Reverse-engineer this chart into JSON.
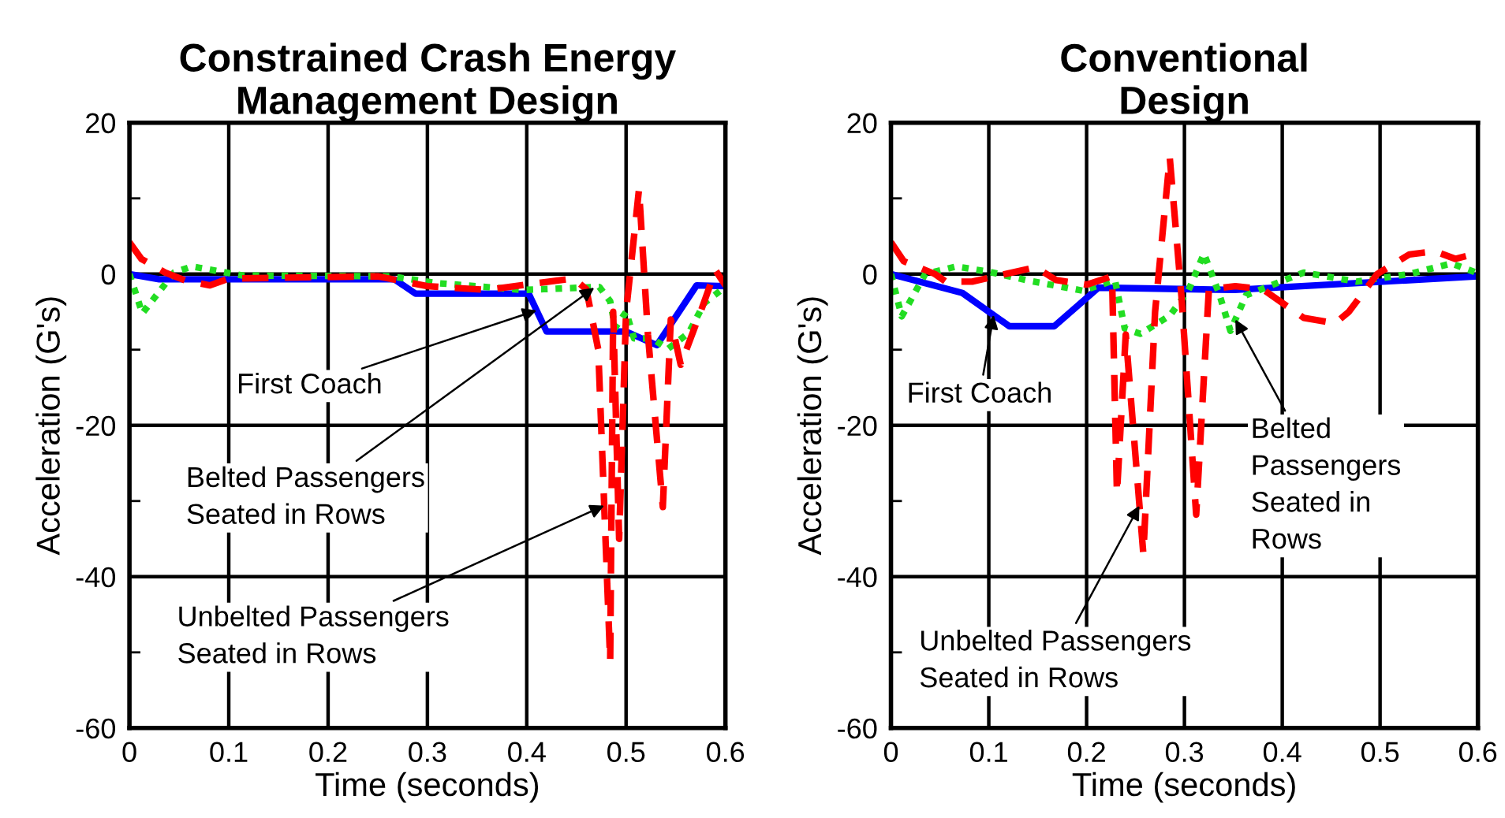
{
  "chart_data": [
    {
      "type": "line",
      "title": "Constrained Crash Energy\nManagement Design",
      "xlabel": "Time (seconds)",
      "ylabel": "Acceleration (G's)",
      "xlim": [
        0,
        0.6
      ],
      "ylim": [
        -60,
        20
      ],
      "xticks": [
        0,
        0.1,
        0.2,
        0.3,
        0.4,
        0.5,
        0.6
      ],
      "yticks": [
        20,
        {
          "value": 10,
          "label": null
        },
        0,
        {
          "value": -10,
          "label": null
        },
        -20,
        {
          "value": -30,
          "label": null
        },
        -40,
        {
          "value": -50,
          "label": null
        },
        -60
      ],
      "grid": true,
      "legend": false,
      "series": [
        {
          "color": "#0000ff",
          "line_style": "solid",
          "x": [
            0,
            0.03,
            0.267,
            0.288,
            0.402,
            0.42,
            0.5,
            0.531,
            0.571,
            0.6
          ],
          "values": [
            0,
            -0.7,
            -0.7,
            -2.6,
            -2.6,
            -7.6,
            -7.6,
            -9.4,
            -1.5,
            -1.6
          ]
        },
        {
          "color": "#22dd22",
          "line_style": "dotted",
          "x": [
            0,
            0.013,
            0.045,
            0.063,
            0.114,
            0.263,
            0.31,
            0.396,
            0.417,
            0.473,
            0.484,
            0.489,
            0.5,
            0.508,
            0.526,
            0.542,
            0.563,
            0.579,
            0.6
          ],
          "values": [
            0,
            -5.2,
            0.2,
            1.0,
            -0.2,
            -0.3,
            -1.2,
            -2.1,
            -2.0,
            -1.7,
            -3.6,
            -7.1,
            -5.0,
            -8.5,
            -8.5,
            -9.9,
            -7.8,
            -3.8,
            -1.7
          ]
        },
        {
          "color": "#ff0000",
          "line_style": "dashed",
          "x": [
            0,
            0.012,
            0.036,
            0.057,
            0.081,
            0.1,
            0.25,
            0.3,
            0.36,
            0.41,
            0.447,
            0.46,
            0.472,
            0.484,
            0.487,
            0.493,
            0.5,
            0.513,
            0.522,
            0.537,
            0.545,
            0.555,
            0.575,
            0.59,
            0.6
          ],
          "values": [
            4.2,
            2.0,
            0.2,
            -0.9,
            -1.5,
            -0.6,
            -0.3,
            -1.6,
            -2.1,
            -1.2,
            -0.6,
            -2,
            -10,
            -51.2,
            -5,
            -35,
            -5,
            11.2,
            -8,
            -30.8,
            -6,
            -12,
            -5,
            0.5,
            -1.5
          ]
        }
      ],
      "annotations": [
        {
          "text": "First Coach",
          "x": 0.41,
          "y": -4.8
        },
        {
          "text": "Belted Passengers\nSeated in Rows",
          "x": 0.468,
          "y": -1.8
        },
        {
          "text": "Unbelted Passengers\nSeated in Rows",
          "x": 0.478,
          "y": -30.6
        }
      ]
    },
    {
      "type": "line",
      "title": "Conventional\nDesign",
      "xlabel": "Time (seconds)",
      "ylabel": "Acceleration (G's)",
      "xlim": [
        0,
        0.6
      ],
      "ylim": [
        -60,
        20
      ],
      "xticks": [
        0,
        0.1,
        0.2,
        0.3,
        0.4,
        0.5,
        0.6
      ],
      "yticks": [
        20,
        {
          "value": 10,
          "label": null
        },
        0,
        {
          "value": -10,
          "label": null
        },
        -20,
        {
          "value": -30,
          "label": null
        },
        -40,
        {
          "value": -50,
          "label": null
        },
        -60
      ],
      "grid": true,
      "legend": false,
      "series": [
        {
          "color": "#0000ff",
          "line_style": "solid",
          "x": [
            0,
            0.073,
            0.121,
            0.167,
            0.212,
            0.351,
            0.6
          ],
          "values": [
            0,
            -2.5,
            -6.9,
            -6.9,
            -1.8,
            -2.1,
            -0.3
          ]
        },
        {
          "color": "#22dd22",
          "line_style": "dotted",
          "x": [
            0,
            0.011,
            0.035,
            0.067,
            0.1,
            0.142,
            0.196,
            0.229,
            0.239,
            0.255,
            0.285,
            0.304,
            0.32,
            0.336,
            0.347,
            0.363,
            0.422,
            0.476,
            0.53,
            0.573,
            0.6
          ],
          "values": [
            0,
            -5.6,
            0,
            1.0,
            0.3,
            -0.9,
            -2.2,
            -0.8,
            -7.2,
            -7.9,
            -5.5,
            -2.2,
            2.7,
            -2.8,
            -7.5,
            -2.8,
            0.2,
            -1,
            0,
            1.4,
            0.1
          ]
        },
        {
          "color": "#ff0000",
          "line_style": "dashed",
          "x": [
            0,
            0.013,
            0.045,
            0.056,
            0.083,
            0.148,
            0.169,
            0.2,
            0.226,
            0.231,
            0.24,
            0.258,
            0.27,
            0.285,
            0.297,
            0.312,
            0.325,
            0.352,
            0.38,
            0.422,
            0.454,
            0.468,
            0.497,
            0.53,
            0.556,
            0.577,
            0.6
          ],
          "values": [
            4.2,
            1.7,
            0,
            -1,
            -1,
            0.9,
            -0.8,
            -1.4,
            -0.3,
            -29,
            -8,
            -37,
            -5,
            15.4,
            -3,
            -31.8,
            -2,
            -1.6,
            -2,
            -5.8,
            -6.5,
            -5,
            0,
            2.6,
            3,
            2,
            2.8
          ]
        }
      ],
      "annotations": [
        {
          "text": "First Coach",
          "x": 0.105,
          "y": -5.4
        },
        {
          "text": "Belted\nPassengers\nSeated in\nRows",
          "x": 0.352,
          "y": -6.0
        },
        {
          "text": "Unbelted Passengers\nSeated in Rows",
          "x": 0.254,
          "y": -30.6
        }
      ]
    }
  ]
}
